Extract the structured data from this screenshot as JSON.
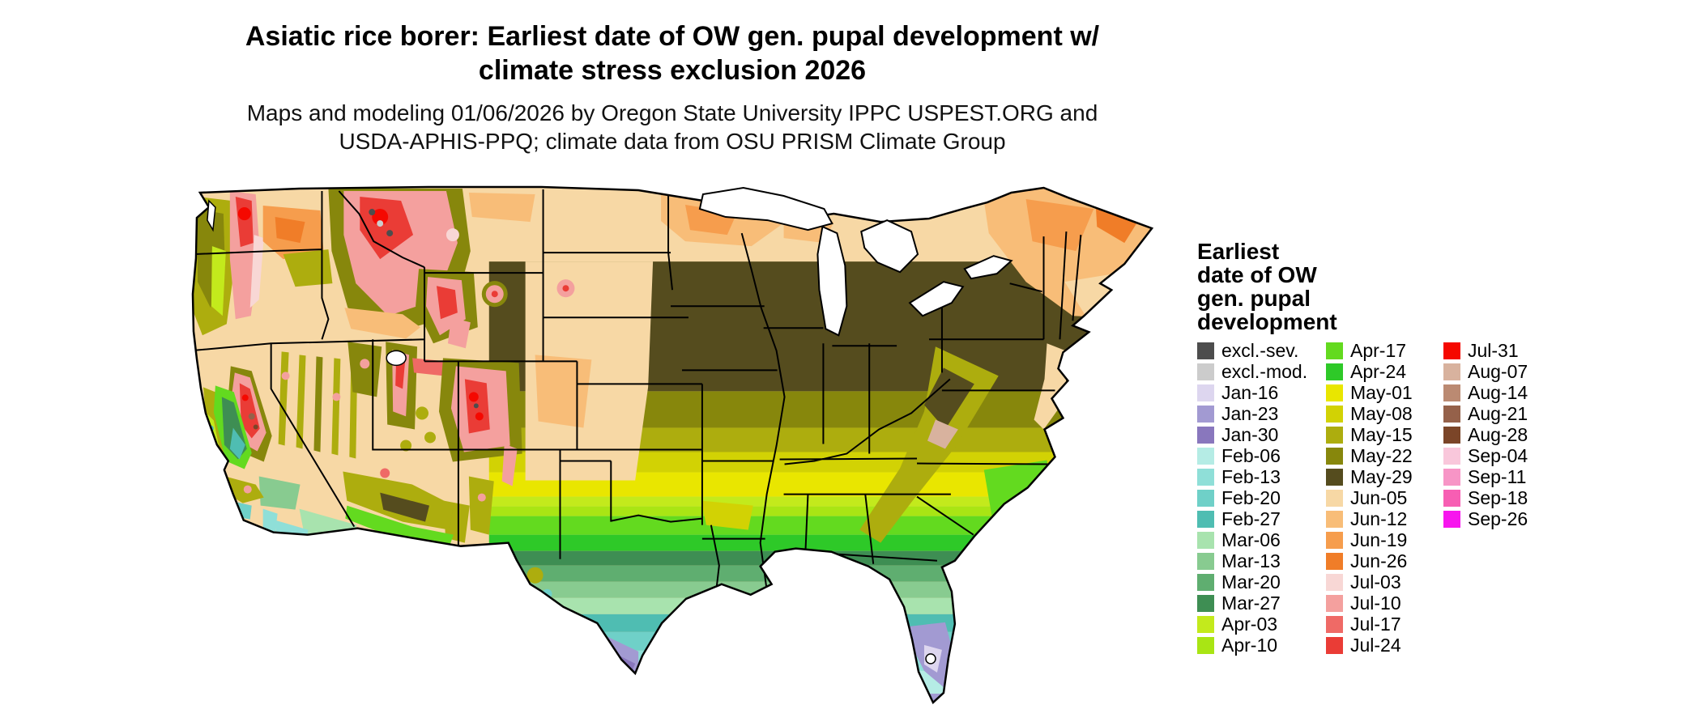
{
  "header": {
    "title_line1": "Asiatic rice borer: Earliest date of OW gen. pupal development w/",
    "title_line2": "climate stress exclusion 2026",
    "subtitle_line1": "Maps and modeling 01/06/2026 by Oregon State University IPPC USPEST.ORG and",
    "subtitle_line2": "USDA-APHIS-PPQ; climate data from OSU PRISM Climate Group"
  },
  "legend": {
    "title_lines": [
      "Earliest",
      "date of OW",
      "gen. pupal",
      "development"
    ],
    "columns": [
      [
        {
          "label": "excl.-sev.",
          "color": "#4d4d4d"
        },
        {
          "label": "excl.-mod.",
          "color": "#cccccc"
        },
        {
          "label": "Jan-16",
          "color": "#ddd6ef"
        },
        {
          "label": "Jan-23",
          "color": "#a29ad2"
        },
        {
          "label": "Jan-30",
          "color": "#8977bd"
        },
        {
          "label": "Feb-06",
          "color": "#b5ece5"
        },
        {
          "label": "Feb-13",
          "color": "#8fdfd8"
        },
        {
          "label": "Feb-20",
          "color": "#6fd0c8"
        },
        {
          "label": "Feb-27",
          "color": "#4fbdb2"
        },
        {
          "label": "Mar-06",
          "color": "#a8e3ae"
        },
        {
          "label": "Mar-13",
          "color": "#88cb90"
        },
        {
          "label": "Mar-20",
          "color": "#5fae70"
        },
        {
          "label": "Mar-27",
          "color": "#3e8e53"
        },
        {
          "label": "Apr-03",
          "color": "#c3ea1c"
        },
        {
          "label": "Apr-10",
          "color": "#a9e514"
        }
      ],
      [
        {
          "label": "Apr-17",
          "color": "#63da1f"
        },
        {
          "label": "Apr-24",
          "color": "#2ec928"
        },
        {
          "label": "May-01",
          "color": "#e9e600"
        },
        {
          "label": "May-08",
          "color": "#d2d204"
        },
        {
          "label": "May-15",
          "color": "#adad0e"
        },
        {
          "label": "May-22",
          "color": "#87870c"
        },
        {
          "label": "May-29",
          "color": "#554c1e"
        },
        {
          "label": "Jun-05",
          "color": "#f7d8a5"
        },
        {
          "label": "Jun-12",
          "color": "#f8bd78"
        },
        {
          "label": "Jun-19",
          "color": "#f69d4d"
        },
        {
          "label": "Jun-26",
          "color": "#f07d28"
        },
        {
          "label": "Jul-03",
          "color": "#f8d7d5"
        },
        {
          "label": "Jul-10",
          "color": "#f4a09e"
        },
        {
          "label": "Jul-17",
          "color": "#ef6a66"
        },
        {
          "label": "Jul-24",
          "color": "#ea3c36"
        }
      ],
      [
        {
          "label": "Jul-31",
          "color": "#f50800"
        },
        {
          "label": "Aug-07",
          "color": "#d8b29e"
        },
        {
          "label": "Aug-14",
          "color": "#bb8a72"
        },
        {
          "label": "Aug-21",
          "color": "#95614a"
        },
        {
          "label": "Aug-28",
          "color": "#7b4528"
        },
        {
          "label": "Sep-04",
          "color": "#f9c7db"
        },
        {
          "label": "Sep-11",
          "color": "#f795c6"
        },
        {
          "label": "Sep-18",
          "color": "#f75eb3"
        },
        {
          "label": "Sep-26",
          "color": "#f716ee"
        }
      ]
    ]
  },
  "map": {
    "water_color": "#ffffff",
    "border_color": "#000000",
    "land_default_class": "Jun-05"
  }
}
